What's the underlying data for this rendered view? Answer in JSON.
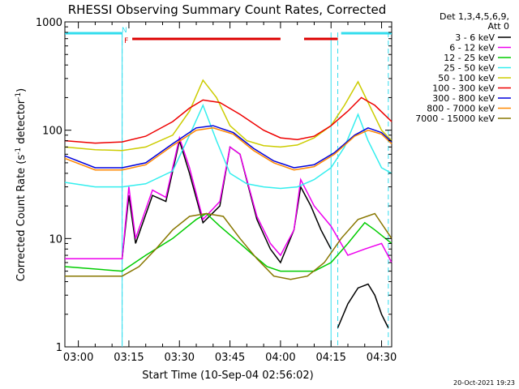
{
  "chart_data": {
    "type": "line",
    "title": "RHESSI Observing Summary Count Rates, Corrected",
    "xlabel": "Start Time (10-Sep-04 02:56:02)",
    "ylabel": "Corrected Count Rate (s",
    "ylabel_sup1": "-1",
    "ylabel_mid": " detector",
    "ylabel_sup2": "-1",
    "ylabel_end": ")",
    "y_scale": "log",
    "ylim": [
      1,
      1000
    ],
    "y_ticks": [
      {
        "value": 1,
        "label": "1"
      },
      {
        "value": 10,
        "label": "10"
      },
      {
        "value": 100,
        "label": "100"
      },
      {
        "value": 1000,
        "label": "1000"
      }
    ],
    "xlim": [
      "02:56",
      "04:33"
    ],
    "x_ticks": [
      "03:00",
      "03:15",
      "03:30",
      "03:45",
      "04:00",
      "04:15",
      "04:30"
    ],
    "legend_header": [
      "Det 1,3,4,5,6,9,",
      "Att 0"
    ],
    "legend_placement": "right",
    "flags": [
      {
        "label": "F",
        "color": "#dd0000",
        "segments": [
          [
            "03:16",
            "04:00"
          ],
          [
            "04:07",
            "04:17"
          ]
        ]
      },
      {
        "label": "N",
        "color": "#33ddee",
        "segments": [
          [
            "02:56",
            "03:13"
          ],
          [
            "04:18",
            "04:33"
          ]
        ]
      }
    ],
    "vertical_markers": {
      "solid": [
        "03:13",
        "04:15"
      ],
      "dashed": [
        "03:13",
        "04:17",
        "04:32"
      ],
      "color": "#33ddee"
    },
    "series": [
      {
        "name": "3 - 6 keV",
        "color": "#000000",
        "x": [
          "02:56",
          "03:13",
          "03:15",
          "03:17",
          "03:22",
          "03:26",
          "03:30",
          "03:33",
          "03:37",
          "03:42",
          "03:45",
          "03:48",
          "03:53",
          "03:57",
          "04:00",
          "04:04",
          "04:06",
          "04:09",
          "04:12",
          "04:15"
        ],
        "values": [
          6.5,
          6.5,
          25,
          9,
          25,
          22,
          80,
          40,
          14,
          20,
          70,
          60,
          15,
          8,
          6,
          12,
          30,
          20,
          12,
          8
        ]
      },
      {
        "name": "6 - 12 keV",
        "color": "#ee00ee",
        "x": [
          "02:56",
          "03:13",
          "03:15",
          "03:17",
          "03:22",
          "03:26",
          "03:30",
          "03:33",
          "03:37",
          "03:42",
          "03:45",
          "03:48",
          "03:53",
          "03:57",
          "04:00",
          "04:04",
          "04:06",
          "04:10",
          "04:15",
          "04:20",
          "04:25",
          "04:30",
          "04:33"
        ],
        "values": [
          6.5,
          6.5,
          30,
          10,
          28,
          24,
          85,
          45,
          15,
          22,
          70,
          60,
          16,
          9,
          7,
          12,
          35,
          20,
          13,
          7,
          8,
          9,
          6
        ]
      },
      {
        "name": "12 - 25 keV",
        "color": "#00cc00",
        "x": [
          "02:56",
          "03:13",
          "03:20",
          "03:28",
          "03:35",
          "03:38",
          "03:42",
          "03:48",
          "03:52",
          "03:56",
          "04:00",
          "04:04",
          "04:10",
          "04:15",
          "04:20",
          "04:25",
          "04:28",
          "04:33"
        ],
        "values": [
          5.5,
          5,
          7,
          10,
          15,
          17,
          13,
          9,
          7,
          5.5,
          5,
          5,
          5,
          6,
          9,
          14,
          12,
          9
        ]
      },
      {
        "name": "25 - 50 keV",
        "color": "#33eeee",
        "x": [
          "02:56",
          "03:05",
          "03:13",
          "03:20",
          "03:28",
          "03:33",
          "03:37",
          "03:41",
          "03:45",
          "03:50",
          "03:55",
          "04:00",
          "04:05",
          "04:10",
          "04:15",
          "04:19",
          "04:23",
          "04:26",
          "04:30",
          "04:33"
        ],
        "values": [
          33,
          30,
          30,
          32,
          42,
          90,
          170,
          80,
          40,
          32,
          30,
          29,
          30,
          35,
          45,
          70,
          140,
          80,
          45,
          40
        ]
      },
      {
        "name": "50 - 100 keV",
        "color": "#cccc00",
        "x": [
          "02:56",
          "03:05",
          "03:13",
          "03:20",
          "03:28",
          "03:33",
          "03:37",
          "03:41",
          "03:45",
          "03:50",
          "03:55",
          "04:00",
          "04:05",
          "04:10",
          "04:15",
          "04:19",
          "04:23",
          "04:26",
          "04:30",
          "04:33"
        ],
        "values": [
          70,
          66,
          65,
          70,
          90,
          150,
          290,
          200,
          110,
          80,
          72,
          70,
          73,
          85,
          110,
          170,
          280,
          180,
          100,
          80
        ]
      },
      {
        "name": "100 - 300 keV",
        "color": "#ee0000",
        "x": [
          "02:56",
          "03:05",
          "03:13",
          "03:20",
          "03:28",
          "03:33",
          "03:37",
          "03:42",
          "03:48",
          "03:55",
          "04:00",
          "04:05",
          "04:10",
          "04:15",
          "04:20",
          "04:24",
          "04:28",
          "04:33"
        ],
        "values": [
          80,
          76,
          78,
          88,
          120,
          160,
          190,
          180,
          140,
          100,
          85,
          82,
          88,
          110,
          150,
          200,
          170,
          120
        ]
      },
      {
        "name": "300 - 800 keV",
        "color": "#0000dd",
        "x": [
          "02:56",
          "03:05",
          "03:13",
          "03:20",
          "03:28",
          "03:35",
          "03:40",
          "03:46",
          "03:52",
          "03:58",
          "04:04",
          "04:10",
          "04:16",
          "04:22",
          "04:26",
          "04:30",
          "04:33"
        ],
        "values": [
          58,
          45,
          45,
          50,
          75,
          105,
          110,
          95,
          68,
          52,
          45,
          48,
          62,
          90,
          105,
          95,
          78
        ]
      },
      {
        "name": "800 - 7000 keV",
        "color": "#ff8800",
        "x": [
          "02:56",
          "03:05",
          "03:13",
          "03:20",
          "03:28",
          "03:35",
          "03:40",
          "03:46",
          "03:52",
          "03:58",
          "04:04",
          "04:10",
          "04:16",
          "04:22",
          "04:26",
          "04:30",
          "04:33"
        ],
        "values": [
          55,
          43,
          43,
          48,
          72,
          100,
          105,
          92,
          65,
          50,
          43,
          46,
          60,
          88,
          100,
          92,
          75
        ]
      },
      {
        "name": "7000 - 15000 keV",
        "color": "#887700",
        "x": [
          "02:56",
          "03:13",
          "03:18",
          "03:23",
          "03:28",
          "03:33",
          "03:38",
          "03:43",
          "03:48",
          "03:53",
          "03:58",
          "04:03",
          "04:08",
          "04:13",
          "04:18",
          "04:23",
          "04:28",
          "04:33"
        ],
        "values": [
          4.5,
          4.5,
          5.5,
          8,
          12,
          16,
          17,
          16,
          10,
          6.5,
          4.5,
          4.2,
          4.5,
          6,
          10,
          15,
          17,
          10
        ]
      }
    ],
    "extra_segments": [
      {
        "color": "#000000",
        "x": [
          "04:17",
          "04:20",
          "04:23",
          "04:26",
          "04:28",
          "04:30",
          "04:32"
        ],
        "values": [
          1.5,
          2.5,
          3.5,
          3.8,
          3,
          2,
          1.5
        ]
      }
    ]
  },
  "footer": {
    "date": "20-Oct-2021 19:23"
  }
}
